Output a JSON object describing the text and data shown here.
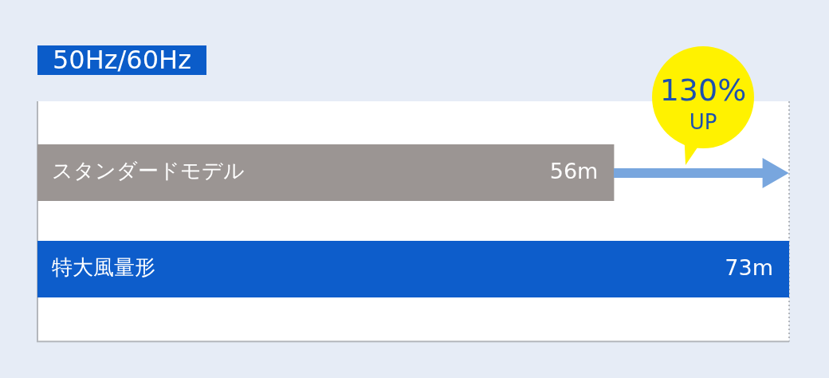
{
  "chart_data": {
    "type": "bar",
    "orientation": "horizontal",
    "title": "50Hz/60Hz",
    "categories": [
      "スタンダードモデル",
      "特大風量形"
    ],
    "values": [
      56,
      73
    ],
    "colors": [
      "#9b9593",
      "#0d5dcb"
    ],
    "value_labels": [
      "56m",
      "73m"
    ],
    "xlim": [
      0,
      73
    ],
    "tick_labels": "y",
    "annotations": [
      "130% UP"
    ]
  }
}
